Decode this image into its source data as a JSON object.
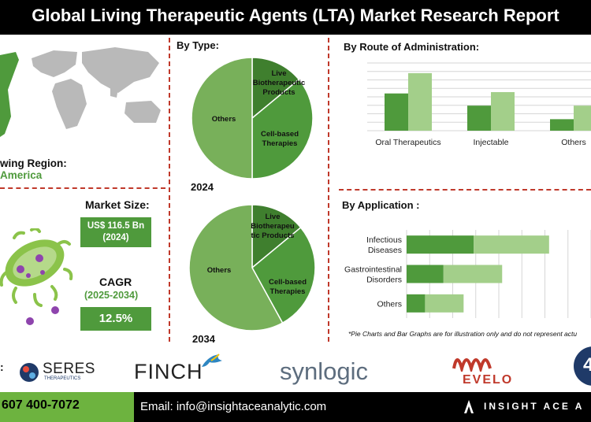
{
  "title": "Global Living Therapeutic Agents (LTA) Market Research Report",
  "region": {
    "label": "Fastest Growing Region:",
    "label_visible": "wing Region:",
    "value_visible": "America"
  },
  "market_size": {
    "label": "Market Size:",
    "value": "US$ 116.5 Bn",
    "year": "(2024)"
  },
  "cagr": {
    "label": "CAGR",
    "period": "(2025-2034)",
    "value": "12.5%"
  },
  "by_type": {
    "title": "By Type:",
    "charts": [
      {
        "year": "2024",
        "slices": [
          {
            "name": "Live Biotherapeutic Products",
            "value": 14,
            "color": "#3f7f2e"
          },
          {
            "name": "Cell-based Therapies",
            "value": 36,
            "color": "#4f9a3c"
          },
          {
            "name": "Others",
            "value": 50,
            "color": "#78b05a"
          }
        ],
        "labels": [
          "Live",
          "Biotherapeutic",
          "Products",
          "Cell-based",
          "Therapies",
          "Others"
        ]
      },
      {
        "year": "2034",
        "slices": [
          {
            "name": "Live Biotherapeutic Products",
            "value": 14,
            "color": "#3f7f2e"
          },
          {
            "name": "Cell-based Therapies",
            "value": 28,
            "color": "#4f9a3c"
          },
          {
            "name": "Others",
            "value": 58,
            "color": "#78b05a"
          }
        ],
        "labels": [
          "Live",
          "Biotherapeu",
          "tic Products",
          "Cell-based",
          "Therapies",
          "Others"
        ]
      }
    ]
  },
  "chart_data": [
    {
      "type": "bar",
      "title": "By Route of Administration:",
      "categories": [
        "Oral Therapeutics",
        "Injectable",
        "Others"
      ],
      "series": [
        {
          "values": [
            55,
            37,
            17
          ],
          "color": "#4f9a3c"
        },
        {
          "values": [
            85,
            57,
            37
          ],
          "color": "#a3cf8a"
        }
      ],
      "ylim": [
        0,
        100
      ],
      "grid": true
    },
    {
      "type": "bar",
      "orientation": "horizontal-stacked",
      "title": "By Application :",
      "categories": [
        "Infectious Diseases",
        "Gastrointestinal Disorders",
        "Others"
      ],
      "category_lines": [
        [
          "Infectious",
          "Diseases"
        ],
        [
          "Gastrointestinal",
          "Disorders"
        ],
        [
          "Others"
        ]
      ],
      "series": [
        {
          "values": [
            40,
            22,
            11
          ],
          "color": "#4f9a3c"
        },
        {
          "values": [
            45,
            35,
            23
          ],
          "color": "#a3cf8a"
        }
      ],
      "xlim": [
        0,
        110
      ],
      "grid": true
    }
  ],
  "disclaimer": "*Pie Charts and Bar Graphs are for illustration only and do not represent actu",
  "companies": {
    "prefix": ":",
    "seres": "SERES",
    "seres_sub": "THERAPEUTICS",
    "finch": "FINCH",
    "synlogic": "synlogic",
    "evelo": "EVELO",
    "last": "4"
  },
  "footer": {
    "phone": "607 400-7072",
    "email": "Email: info@insightaceanalytic.com",
    "brand": "INSIGHT ACE A"
  },
  "colors": {
    "dark_green": "#3f7f2e",
    "green": "#4f9a3c",
    "light_green": "#a3cf8a",
    "accent_green": "#6db33f",
    "divider_red": "#c0392b",
    "evelo_red": "#c0392b",
    "navy": "#1f3a68"
  }
}
